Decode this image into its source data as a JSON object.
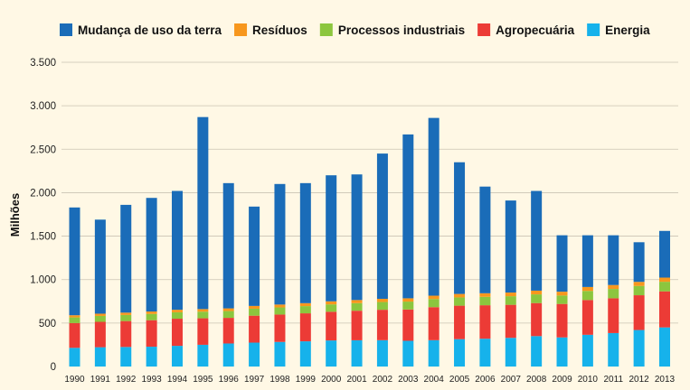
{
  "chart_data": {
    "type": "bar",
    "stacked": true,
    "title": "",
    "xlabel": "",
    "ylabel": "Milhões",
    "ylim": [
      0,
      3500
    ],
    "yticks": [
      0,
      500,
      1000,
      1500,
      2000,
      2500,
      3000,
      3500
    ],
    "ytick_labels": [
      "0",
      "500",
      "1.000",
      "1.500",
      "2.000",
      "2.500",
      "3.000",
      "3.500"
    ],
    "grid": true,
    "legend_position": "top",
    "categories": [
      "1990",
      "1991",
      "1992",
      "1993",
      "1994",
      "1995",
      "1996",
      "1997",
      "1998",
      "1999",
      "2000",
      "2001",
      "2002",
      "2003",
      "2004",
      "2005",
      "2006",
      "2007",
      "2008",
      "2009",
      "2010",
      "2011",
      "2012",
      "2013"
    ],
    "series": [
      {
        "name": "Energia",
        "color": "#16b2eb",
        "values": [
          215,
          222,
          225,
          228,
          238,
          250,
          265,
          275,
          283,
          290,
          300,
          302,
          303,
          296,
          303,
          315,
          320,
          330,
          350,
          335,
          365,
          385,
          420,
          450
        ]
      },
      {
        "name": "Agropecuária",
        "color": "#ec3b36",
        "values": [
          285,
          292,
          298,
          305,
          312,
          305,
          295,
          310,
          315,
          322,
          330,
          340,
          350,
          360,
          380,
          385,
          385,
          380,
          380,
          385,
          400,
          400,
          400,
          415
        ]
      },
      {
        "name": "Processos industriais",
        "color": "#8cc63e",
        "values": [
          65,
          68,
          70,
          72,
          74,
          76,
          78,
          80,
          82,
          83,
          85,
          87,
          89,
          91,
          93,
          95,
          97,
          99,
          100,
          97,
          105,
          107,
          107,
          110
        ]
      },
      {
        "name": "Resíduos",
        "color": "#f7971d",
        "values": [
          25,
          26,
          27,
          28,
          29,
          30,
          31,
          32,
          33,
          34,
          35,
          36,
          37,
          38,
          39,
          40,
          41,
          42,
          43,
          44,
          45,
          46,
          47,
          48
        ]
      },
      {
        "name": "Mudança de uso da terra",
        "color": "#1a6cb8",
        "values": [
          1240,
          1082,
          1240,
          1307,
          1367,
          2209,
          1441,
          1143,
          1387,
          1381,
          1450,
          1445,
          1671,
          1885,
          2045,
          1515,
          1227,
          1059,
          1147,
          649,
          595,
          572,
          456,
          537
        ]
      }
    ],
    "legend_order": [
      "Mudança de uso da terra",
      "Resíduos",
      "Processos industriais",
      "Agropecuária",
      "Energia"
    ]
  }
}
